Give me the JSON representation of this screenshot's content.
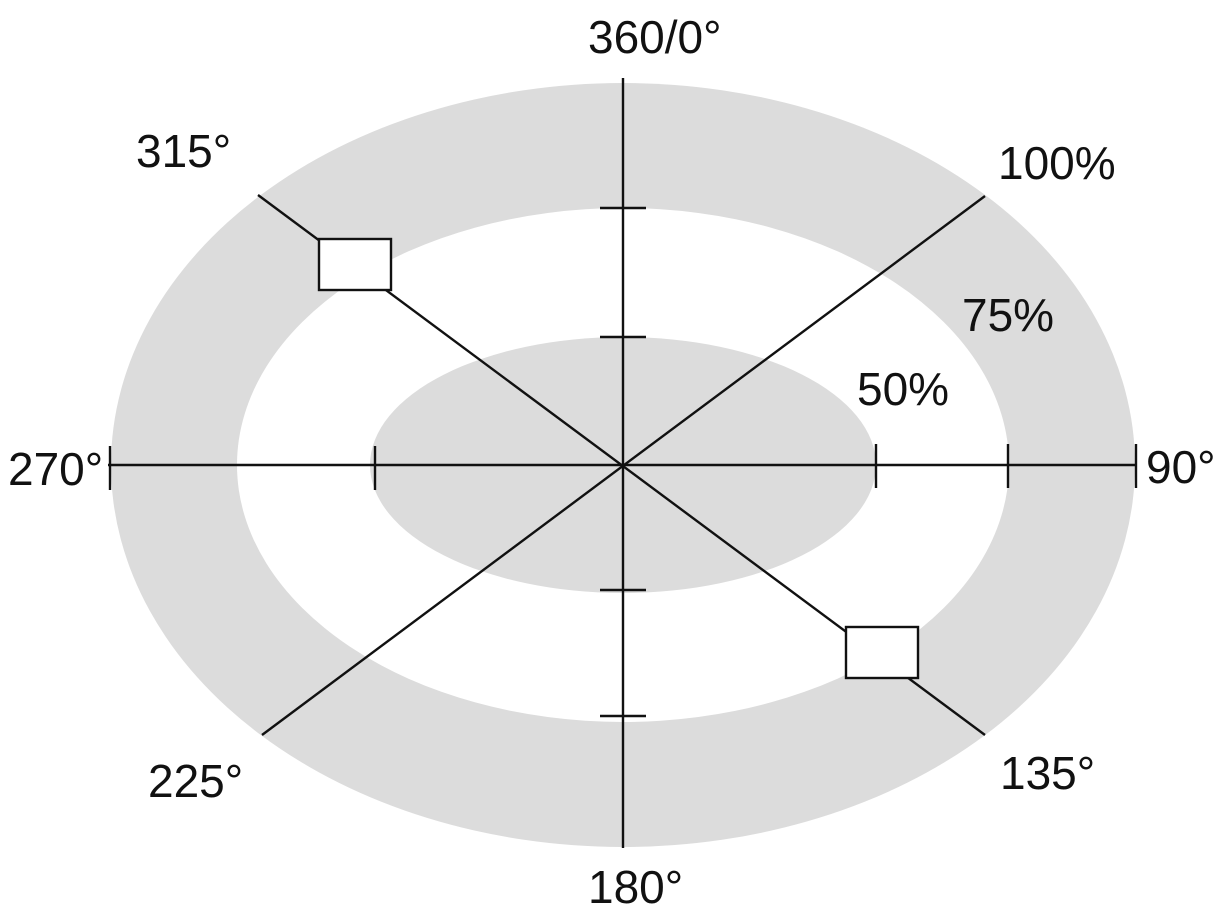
{
  "labels": {
    "deg_0": "360/0°",
    "deg_90": "90°",
    "deg_135": "135°",
    "deg_180": "180°",
    "deg_225": "225°",
    "deg_270": "270°",
    "deg_315": "315°",
    "pct_100": "100%",
    "pct_75": "75%",
    "pct_50": "50%"
  },
  "colors": {
    "ring_fill": "#dcdcdc",
    "background": "#ffffff",
    "line": "#111111"
  }
}
